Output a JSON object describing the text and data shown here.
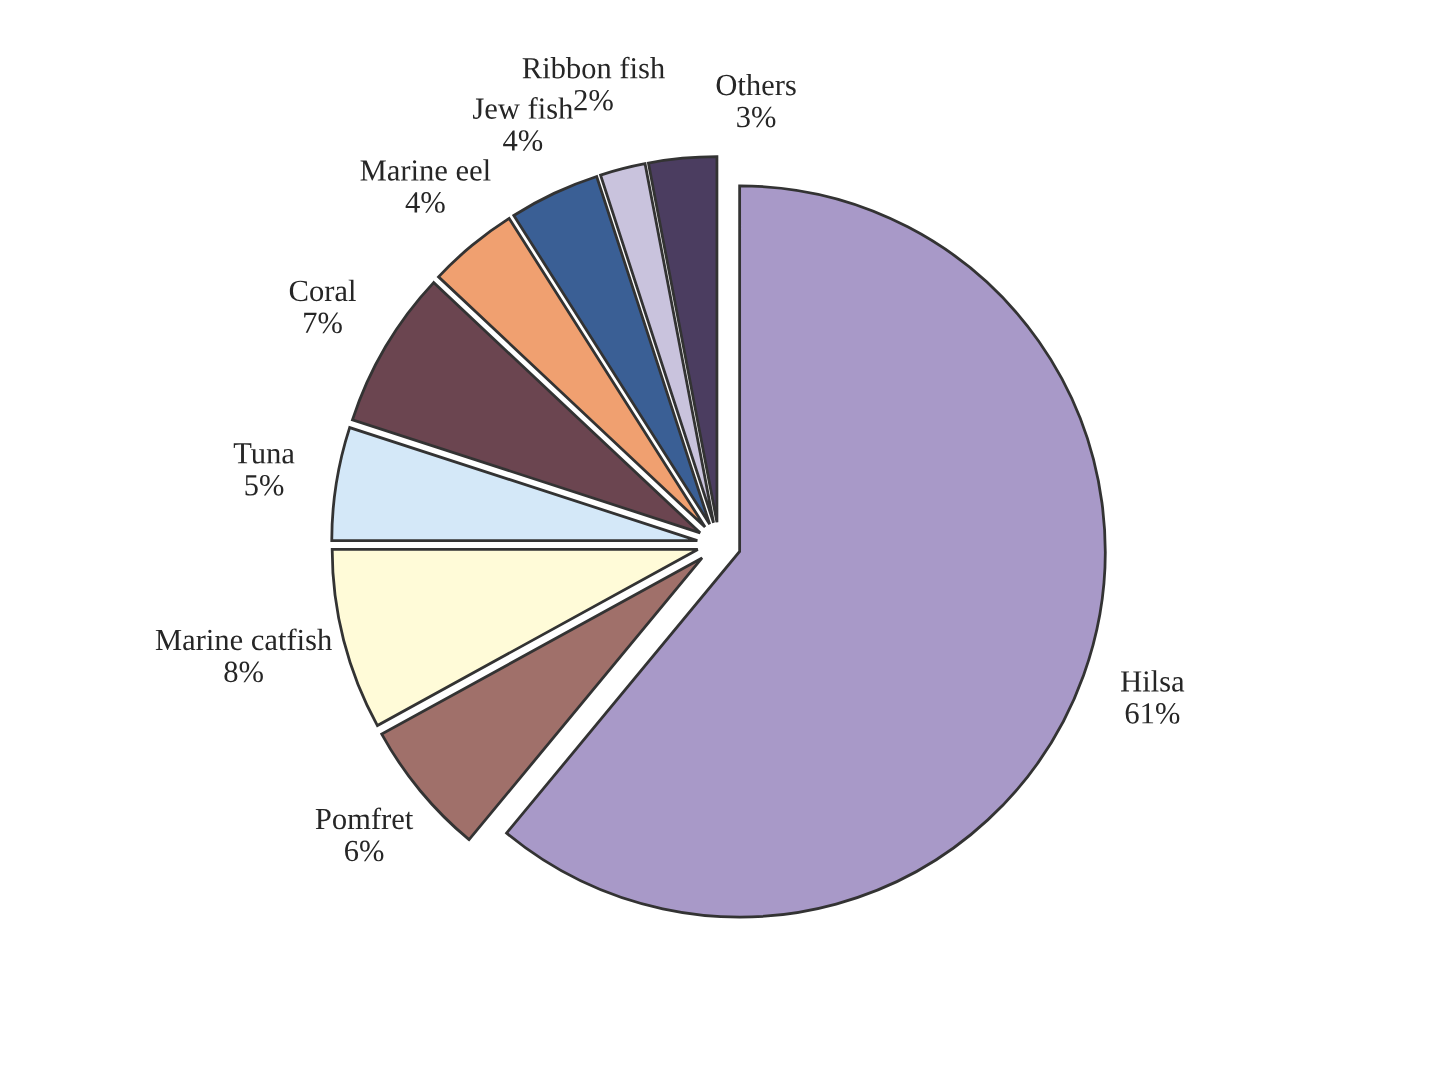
{
  "chart_data": {
    "type": "pie",
    "categories": [
      "Hilsa",
      "Pomfret",
      "Marine catfish",
      "Tuna",
      "Coral",
      "Marine eel",
      "Jew fish",
      "Ribbon fish",
      "Others"
    ],
    "values": [
      61,
      6,
      8,
      5,
      7,
      4,
      4,
      2,
      3
    ],
    "value_labels": [
      "61%",
      "6%",
      "8%",
      "5%",
      "7%",
      "4%",
      "4%",
      "2%",
      "3%"
    ],
    "colors": [
      "#a899c8",
      "#a0706a",
      "#fffbd8",
      "#d4e8f8",
      "#6b4550",
      "#f0a070",
      "#3a5f95",
      "#c9c3dd",
      "#4b3d60"
    ]
  }
}
